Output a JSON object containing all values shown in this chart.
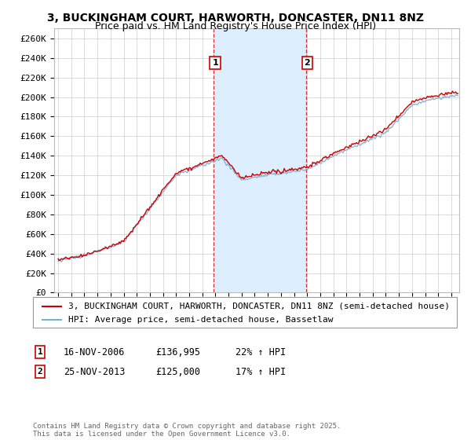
{
  "title": "3, BUCKINGHAM COURT, HARWORTH, DONCASTER, DN11 8NZ",
  "subtitle": "Price paid vs. HM Land Registry's House Price Index (HPI)",
  "ylabel_ticks": [
    "£0",
    "£20K",
    "£40K",
    "£60K",
    "£80K",
    "£100K",
    "£120K",
    "£140K",
    "£160K",
    "£180K",
    "£200K",
    "£220K",
    "£240K",
    "£260K"
  ],
  "ytick_vals": [
    0,
    20000,
    40000,
    60000,
    80000,
    100000,
    120000,
    140000,
    160000,
    180000,
    200000,
    220000,
    240000,
    260000
  ],
  "ylim": [
    0,
    270000
  ],
  "xlim_start": 1994.7,
  "xlim_end": 2025.6,
  "transaction1_date": 2006.88,
  "transaction1_price": 136995,
  "transaction1_label": "1",
  "transaction2_date": 2013.9,
  "transaction2_price": 125000,
  "transaction2_label": "2",
  "line1_color": "#cc0000",
  "line2_color": "#7bafd4",
  "vline_color": "#cc0000",
  "span_color": "#ddeeff",
  "grid_color": "#cccccc",
  "background_color": "#ffffff",
  "plot_background": "#ffffff",
  "legend_line1": "3, BUCKINGHAM COURT, HARWORTH, DONCASTER, DN11 8NZ (semi-detached house)",
  "legend_line2": "HPI: Average price, semi-detached house, Bassetlaw",
  "footnote": "Contains HM Land Registry data © Crown copyright and database right 2025.\nThis data is licensed under the Open Government Licence v3.0.",
  "title_fontsize": 10,
  "subtitle_fontsize": 9,
  "tick_fontsize": 8,
  "legend_fontsize": 8,
  "annotation_fontsize": 8
}
